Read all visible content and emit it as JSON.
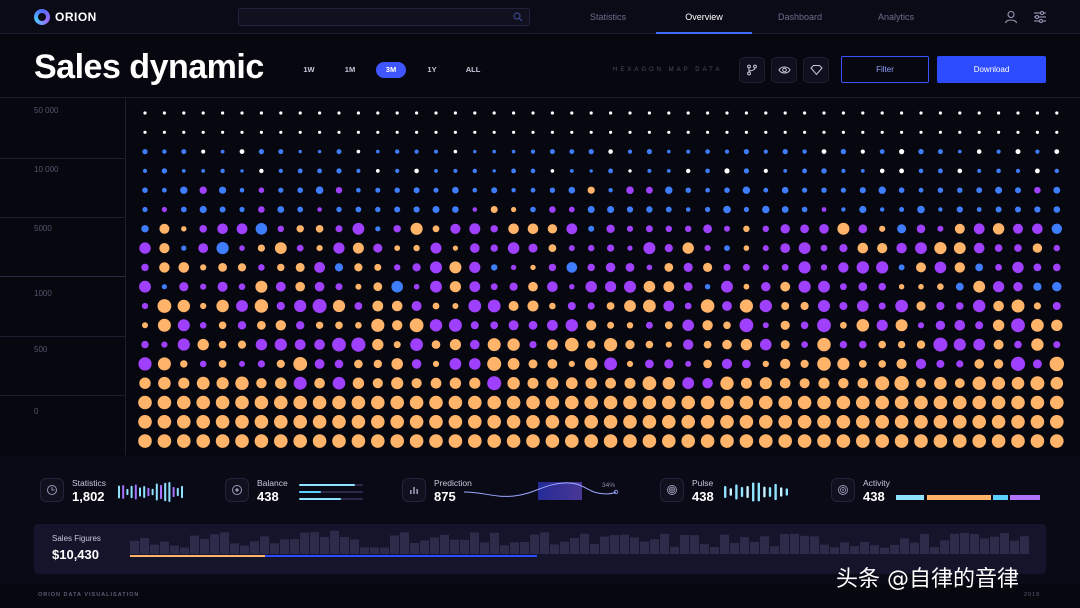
{
  "app": {
    "logo": "ORION"
  },
  "nav": {
    "tabs": [
      {
        "label": "Statistics",
        "active": false
      },
      {
        "label": "Overview",
        "active": true
      },
      {
        "label": "Dashboard",
        "active": false
      },
      {
        "label": "Analytics",
        "active": false
      }
    ]
  },
  "search": {
    "placeholder": ""
  },
  "header": {
    "title": "Sales dynamic",
    "ranges": [
      "1W",
      "1M",
      "3M",
      "1Y",
      "ALL"
    ],
    "active_range": "3M",
    "hex_label": "HEXAGON MAP DATA",
    "filter_label": "Filter",
    "download_label": "Download"
  },
  "chart": {
    "y_ticks": [
      "50 000",
      "10 000",
      "5000",
      "1000",
      "500",
      "0"
    ],
    "colors": {
      "white": "#ffffff",
      "blue": "#3f7dff",
      "purple": "#a040ff",
      "orange": "#ffb46a"
    }
  },
  "stats": [
    {
      "label": "Statistics",
      "value": "1,802",
      "icon": "clock-icon"
    },
    {
      "label": "Balance",
      "value": "438",
      "icon": "plus-circle-icon"
    },
    {
      "label": "Prediction",
      "value": "875",
      "icon": "bar-chart-icon",
      "percent": "34%"
    },
    {
      "label": "Pulse",
      "value": "438",
      "icon": "spiral-icon"
    },
    {
      "label": "Activity",
      "value": "438",
      "icon": "target-icon"
    }
  ],
  "sales": {
    "label": "Sales Figures",
    "value": "$10,430"
  },
  "footer": {
    "left": "ORION DATA VISUALISATION",
    "right": "2018"
  },
  "watermark": "头条 @自律的音律"
}
